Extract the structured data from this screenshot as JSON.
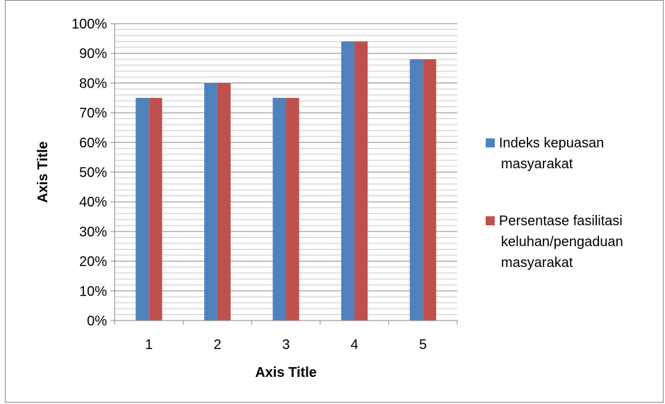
{
  "chart_data": {
    "type": "bar",
    "categories": [
      "1",
      "2",
      "3",
      "4",
      "5"
    ],
    "series": [
      {
        "name": "Indeks kepuasan masyarakat",
        "legend_lines": [
          "Indeks kepuasan",
          "masyarakat"
        ],
        "values": [
          75,
          80,
          75,
          94,
          88
        ],
        "color": "#4F81BD"
      },
      {
        "name": "Persentase fasilitasi keluhan/pengaduan masyarakat",
        "legend_lines": [
          "Persentase fasilitasi",
          "keluhan/pengaduan",
          "masyarakat"
        ],
        "values": [
          75,
          80,
          75,
          94,
          88
        ],
        "color": "#C0504D"
      }
    ],
    "y_ticks": [
      "0%",
      "10%",
      "20%",
      "30%",
      "40%",
      "50%",
      "60%",
      "70%",
      "80%",
      "90%",
      "100%"
    ],
    "ylim": [
      0,
      100
    ],
    "xlabel": "Axis Title",
    "ylabel": "Axis Title",
    "grid": "major and minor horizontal gridlines",
    "legend_position": "right"
  }
}
